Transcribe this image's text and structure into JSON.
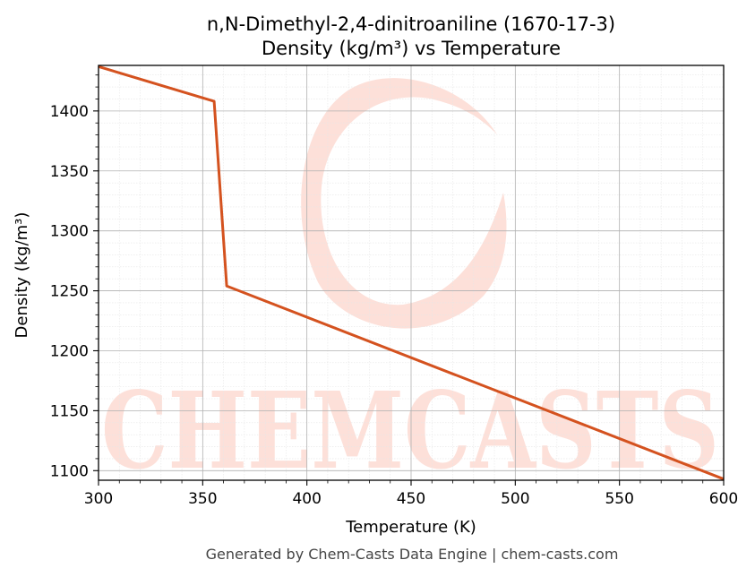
{
  "chart_data": {
    "type": "line",
    "title": "n,N-Dimethyl-2,4-dinitroaniline (1670-17-3)",
    "subtitle": "Density (kg/m³) vs Temperature",
    "xlabel": "Temperature (K)",
    "ylabel": "Density (kg/m³)",
    "xlim": [
      300,
      600
    ],
    "ylim": [
      1092,
      1438
    ],
    "xticks": [
      "300",
      "350",
      "400",
      "450",
      "500",
      "550",
      "600"
    ],
    "yticks": [
      "1100",
      "1150",
      "1200",
      "1250",
      "1300",
      "1350",
      "1400"
    ],
    "grid": true,
    "line_color": "#d4521f",
    "series": [
      {
        "x": [
          300,
          355.5,
          361.5,
          600
        ],
        "y": [
          1437,
          1408,
          1254,
          1093
        ]
      }
    ]
  },
  "watermark": {
    "text": "CHEMCASTS",
    "color": "#fde0d9"
  },
  "footer": "Generated by Chem-Casts Data Engine | chem-casts.com"
}
